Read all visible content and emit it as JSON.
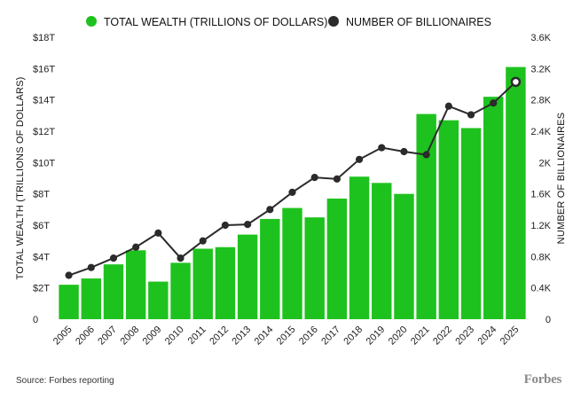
{
  "chart_data": {
    "type": "bar",
    "categories": [
      "2005",
      "2006",
      "2007",
      "2008",
      "2009",
      "2010",
      "2011",
      "2012",
      "2013",
      "2014",
      "2015",
      "2016",
      "2017",
      "2018",
      "2019",
      "2020",
      "2021",
      "2022",
      "2023",
      "2024",
      "2025"
    ],
    "series": [
      {
        "name": "TOTAL WEALTH (TRILLIONS OF DOLLARS)",
        "type": "bar",
        "axis": "left",
        "color": "#1ec21e",
        "values": [
          2.2,
          2.6,
          3.5,
          4.4,
          2.4,
          3.6,
          4.5,
          4.6,
          5.4,
          6.4,
          7.1,
          6.5,
          7.7,
          9.1,
          8.7,
          8.0,
          13.1,
          12.7,
          12.2,
          14.2,
          16.1
        ]
      },
      {
        "name": "NUMBER OF BILLIONAIRES",
        "type": "line",
        "axis": "right",
        "color": "#2b2b2b",
        "values": [
          0.56,
          0.66,
          0.78,
          0.92,
          1.1,
          0.78,
          1.0,
          1.2,
          1.21,
          1.4,
          1.62,
          1.81,
          1.79,
          2.04,
          2.19,
          2.14,
          2.1,
          2.72,
          2.61,
          2.76,
          3.03
        ]
      }
    ],
    "left_axis": {
      "title": "TOTAL WEALTH (TRILLIONS OF DOLLARS)",
      "ylim": [
        0,
        18
      ],
      "ticks": [
        0,
        2,
        4,
        6,
        8,
        10,
        12,
        14,
        16,
        18
      ],
      "tick_labels": [
        "0",
        "$2T",
        "$4T",
        "$6T",
        "$8T",
        "$10T",
        "$12T",
        "$14T",
        "$16T",
        "$18T"
      ]
    },
    "right_axis": {
      "title": "NUMBER OF BILLIONAIRES",
      "ylim": [
        0,
        3.6
      ],
      "ticks": [
        0,
        0.4,
        0.8,
        1.2,
        1.6,
        2.0,
        2.4,
        2.8,
        3.2,
        3.6
      ],
      "tick_labels": [
        "0",
        "0.4K",
        "0.8K",
        "1.2K",
        "1.6K",
        "2K",
        "2.4K",
        "2.8K",
        "3.2K",
        "3.6K"
      ]
    },
    "legend": {
      "placement": "top"
    },
    "grid": false
  },
  "footer": {
    "source": "Source: Forbes reporting",
    "brand": "Forbes"
  }
}
